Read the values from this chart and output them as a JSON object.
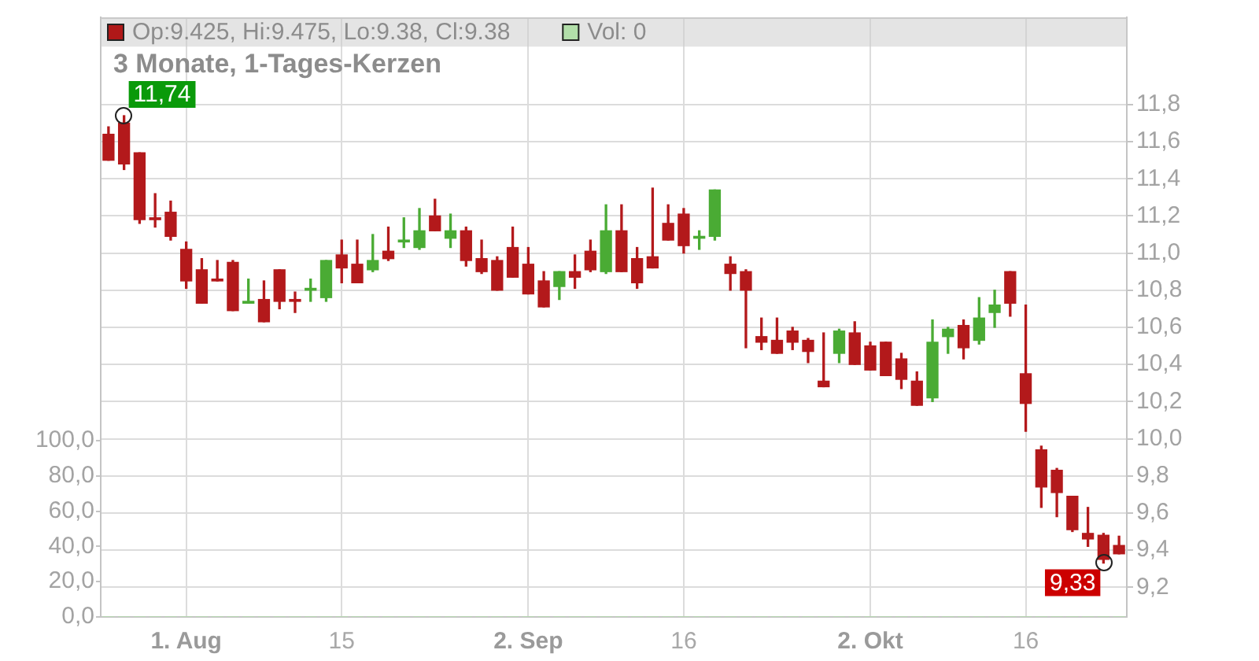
{
  "chart_data": {
    "type": "candlestick",
    "title": "3 Monate, 1-Tages-Kerzen",
    "categories": [
      null,
      null,
      null,
      null,
      null,
      "1. Aug",
      null,
      null,
      null,
      null,
      null,
      null,
      null,
      null,
      null,
      "15",
      null,
      null,
      null,
      null,
      null,
      null,
      null,
      null,
      null,
      null,
      null,
      "2. Sep",
      null,
      null,
      null,
      null,
      null,
      null,
      null,
      null,
      null,
      "16",
      null,
      null,
      null,
      null,
      null,
      null,
      null,
      null,
      null,
      null,
      null,
      "2. Okt",
      null,
      null,
      null,
      null,
      null,
      null,
      null,
      null,
      null,
      "16",
      null,
      null,
      null,
      null,
      null,
      null
    ],
    "series": [
      {
        "name": "Op:9.425, Hi:9.475, Lo:9.38, Cl:9.38",
        "color": "#b01818",
        "colors": [
          "#b3191b",
          "#b3191b",
          "#b3191b",
          "#b3191b",
          "#b3191b",
          "#b3191b",
          "#b3191b",
          "#b3191b",
          "#b3191b",
          "#4aab34",
          "#b3191b",
          "#b3191b",
          "#b3191b",
          "#4aab34",
          "#4aab34",
          "#b3191b",
          "#b3191b",
          "#4aab34",
          "#b3191b",
          "#4aab34",
          "#4aab34",
          "#b3191b",
          "#4aab34",
          "#b3191b",
          "#b3191b",
          "#b3191b",
          "#b3191b",
          "#b3191b",
          "#b3191b",
          "#4aab34",
          "#b3191b",
          "#b3191b",
          "#4aab34",
          "#b3191b",
          "#b3191b",
          "#b3191b",
          "#b3191b",
          "#b3191b",
          "#4aab34",
          "#4aab34",
          "#b3191b",
          "#b3191b",
          "#b3191b",
          "#b3191b",
          "#b3191b",
          "#b3191b",
          "#b3191b",
          "#4aab34",
          "#b3191b",
          "#b3191b",
          "#b3191b",
          "#b3191b",
          "#b3191b",
          "#4aab34",
          "#4aab34",
          "#b3191b",
          "#4aab34",
          "#4aab34",
          "#b3191b",
          "#b3191b",
          "#b3191b",
          "#b3191b",
          "#b3191b",
          "#b3191b",
          "#b3191b",
          "#b3191b"
        ],
        "ohlc": [
          [
            11.64,
            11.68,
            11.5,
            11.5
          ],
          [
            11.7,
            11.74,
            11.45,
            11.48
          ],
          [
            11.54,
            11.54,
            11.16,
            11.18
          ],
          [
            11.19,
            11.32,
            11.14,
            11.18
          ],
          [
            11.22,
            11.28,
            11.07,
            11.09
          ],
          [
            11.02,
            11.06,
            10.81,
            10.85
          ],
          [
            10.91,
            10.97,
            10.73,
            10.73
          ],
          [
            10.86,
            10.96,
            10.85,
            10.85
          ],
          [
            10.95,
            10.96,
            10.69,
            10.69
          ],
          [
            10.73,
            10.86,
            10.73,
            10.74
          ],
          [
            10.75,
            10.85,
            10.63,
            10.63
          ],
          [
            10.91,
            10.91,
            10.7,
            10.74
          ],
          [
            10.75,
            10.79,
            10.68,
            10.74
          ],
          [
            10.8,
            10.86,
            10.74,
            10.81
          ],
          [
            10.76,
            10.96,
            10.74,
            10.96
          ],
          [
            10.99,
            11.07,
            10.84,
            10.92
          ],
          [
            10.94,
            11.07,
            10.84,
            10.84
          ],
          [
            10.91,
            11.1,
            10.9,
            10.96
          ],
          [
            11.01,
            11.14,
            10.96,
            10.97
          ],
          [
            11.06,
            11.19,
            11.03,
            11.07
          ],
          [
            11.03,
            11.24,
            11.02,
            11.12
          ],
          [
            11.2,
            11.29,
            11.12,
            11.12
          ],
          [
            11.08,
            11.21,
            11.03,
            11.12
          ],
          [
            11.12,
            11.14,
            10.93,
            10.96
          ],
          [
            10.97,
            11.07,
            10.89,
            10.9
          ],
          [
            10.96,
            10.98,
            10.8,
            10.8
          ],
          [
            11.03,
            11.14,
            10.87,
            10.87
          ],
          [
            10.94,
            11.03,
            10.78,
            10.78
          ],
          [
            10.85,
            10.9,
            10.71,
            10.71
          ],
          [
            10.82,
            10.9,
            10.75,
            10.9
          ],
          [
            10.9,
            10.99,
            10.81,
            10.87
          ],
          [
            11.01,
            11.07,
            10.9,
            10.91
          ],
          [
            10.9,
            11.26,
            10.89,
            11.12
          ],
          [
            11.12,
            11.26,
            10.9,
            10.9
          ],
          [
            10.97,
            11.03,
            10.81,
            10.84
          ],
          [
            10.98,
            11.35,
            10.92,
            10.92
          ],
          [
            11.16,
            11.26,
            11.07,
            11.07
          ],
          [
            11.21,
            11.24,
            11.0,
            11.04
          ],
          [
            11.08,
            11.12,
            11.02,
            11.09
          ],
          [
            11.09,
            11.34,
            11.07,
            11.34
          ],
          [
            10.94,
            10.98,
            10.8,
            10.89
          ],
          [
            10.9,
            10.91,
            10.49,
            10.8
          ],
          [
            10.55,
            10.65,
            10.48,
            10.52
          ],
          [
            10.53,
            10.65,
            10.46,
            10.46
          ],
          [
            10.58,
            10.6,
            10.48,
            10.52
          ],
          [
            10.53,
            10.54,
            10.41,
            10.47
          ],
          [
            10.31,
            10.57,
            10.28,
            10.28
          ],
          [
            10.46,
            10.59,
            10.41,
            10.58
          ],
          [
            10.57,
            10.63,
            10.4,
            10.4
          ],
          [
            10.5,
            10.52,
            10.37,
            10.37
          ],
          [
            10.52,
            10.52,
            10.34,
            10.34
          ],
          [
            10.43,
            10.46,
            10.27,
            10.32
          ],
          [
            10.31,
            10.36,
            10.18,
            10.18
          ],
          [
            10.22,
            10.64,
            10.2,
            10.52
          ],
          [
            10.55,
            10.6,
            10.46,
            10.59
          ],
          [
            10.61,
            10.64,
            10.43,
            10.49
          ],
          [
            10.53,
            10.76,
            10.51,
            10.65
          ],
          [
            10.68,
            10.8,
            10.6,
            10.72
          ],
          [
            10.9,
            10.9,
            10.66,
            10.73
          ],
          [
            10.35,
            10.72,
            10.04,
            10.19
          ],
          [
            9.94,
            9.96,
            9.63,
            9.74
          ],
          [
            9.83,
            9.84,
            9.58,
            9.71
          ],
          [
            9.69,
            9.69,
            9.5,
            9.51
          ],
          [
            9.49,
            9.63,
            9.42,
            9.46
          ],
          [
            9.48,
            9.49,
            9.33,
            9.35
          ],
          [
            9.425,
            9.475,
            9.38,
            9.38
          ]
        ]
      },
      {
        "name": "Vol: 0",
        "type": "bar",
        "axis": "y2",
        "color": "#b2dfa9",
        "values": [
          0,
          0,
          0,
          0,
          0,
          0,
          0,
          0,
          0,
          0,
          0,
          0,
          0,
          0,
          0,
          0,
          0,
          0,
          0,
          0,
          0,
          0,
          0,
          0,
          0,
          0,
          0,
          0,
          0,
          0,
          0,
          0,
          0,
          0,
          0,
          0,
          0,
          0,
          0,
          0,
          0,
          0,
          0,
          0,
          0,
          0,
          0,
          0,
          0,
          0,
          0,
          0,
          0,
          0,
          0,
          0,
          0,
          0,
          0,
          0,
          0,
          0,
          0,
          0,
          0,
          0
        ]
      }
    ],
    "ylim": [
      9.04,
      12.27
    ],
    "yticks": [
      {
        "value": 9.2,
        "label": "9,2"
      },
      {
        "value": 9.4,
        "label": "9,4"
      },
      {
        "value": 9.6,
        "label": "9,6"
      },
      {
        "value": 9.8,
        "label": "9,8"
      },
      {
        "value": 10.0,
        "label": "10,0"
      },
      {
        "value": 10.2,
        "label": "10,2"
      },
      {
        "value": 10.4,
        "label": "10,4"
      },
      {
        "value": 10.6,
        "label": "10,6"
      },
      {
        "value": 10.8,
        "label": "10,8"
      },
      {
        "value": 11.0,
        "label": "11,0"
      },
      {
        "value": 11.2,
        "label": "11,2"
      },
      {
        "value": 11.4,
        "label": "11,4"
      },
      {
        "value": 11.6,
        "label": "11,6"
      },
      {
        "value": 11.8,
        "label": "11,8"
      }
    ],
    "y2lim": [
      0,
      340
    ],
    "y2ticks": [
      {
        "value": 0,
        "label": "0,0"
      },
      {
        "value": 20,
        "label": "20,0"
      },
      {
        "value": 40,
        "label": "40,0"
      },
      {
        "value": 60,
        "label": "60,0"
      },
      {
        "value": 80,
        "label": "80,0"
      },
      {
        "value": 100,
        "label": "100,0"
      }
    ],
    "annotations": [
      "11,74",
      "9,33"
    ],
    "grid": true,
    "legend": "top"
  }
}
